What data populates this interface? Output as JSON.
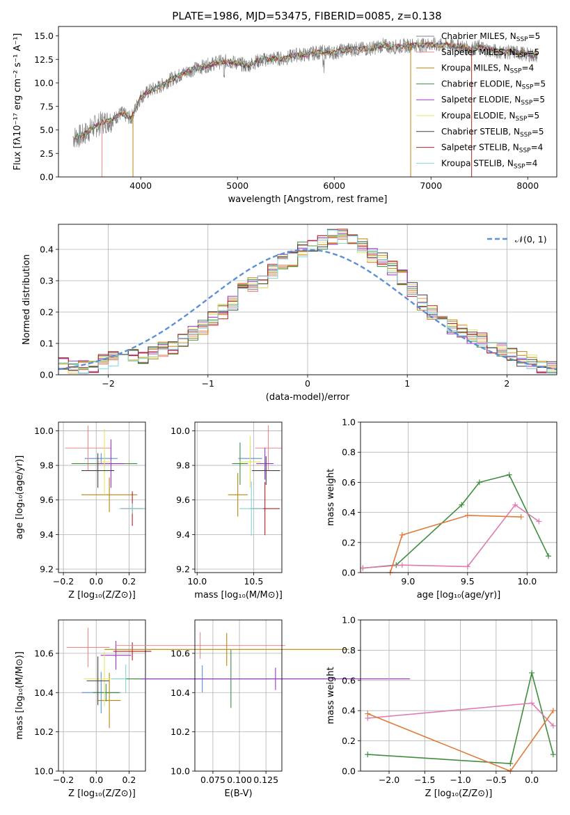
{
  "title": "PLATE=1986, MJD=53475, FIBERID=0085, z=0.138",
  "colors": [
    "#808080",
    "#e8898a",
    "#b8860b",
    "#3e8e3e",
    "#9932cc",
    "#e5e566",
    "#404040",
    "#b22222",
    "#7fd4dc"
  ],
  "spectrum": {
    "xlabel": "wavelength [Angstrom, rest frame]",
    "ylabel": "Flux [fλ10⁻¹⁷ erg cm⁻² s⁻¹ A⁻¹]",
    "xticks": [
      "4000",
      "5000",
      "6000",
      "7000",
      "8000"
    ],
    "yticks": [
      "0.0",
      "2.5",
      "5.0",
      "7.5",
      "10.0",
      "12.5",
      "15.0"
    ],
    "legend": [
      {
        "label": "Chabrier MILES, N",
        "sub": "SSP",
        "suffix": "=5",
        "color": "#808080"
      },
      {
        "label": "Salpeter MILES, N",
        "sub": "SSP",
        "suffix": "=5",
        "color": "#e8898a"
      },
      {
        "label": "Kroupa MILES, N",
        "sub": "SSP",
        "suffix": "=4",
        "color": "#b8860b"
      },
      {
        "label": "Chabrier ELODIE, N",
        "sub": "SSP",
        "suffix": "=5",
        "color": "#3e8e3e"
      },
      {
        "label": "Salpeter ELODIE, N",
        "sub": "SSP",
        "suffix": "=5",
        "color": "#9932cc"
      },
      {
        "label": "Kroupa ELODIE, N",
        "sub": "SSP",
        "suffix": "=5",
        "color": "#e5e566"
      },
      {
        "label": "Chabrier STELIB, N",
        "sub": "SSP",
        "suffix": "=5",
        "color": "#404040"
      },
      {
        "label": "Salpeter STELIB, N",
        "sub": "SSP",
        "suffix": "=4",
        "color": "#b22222"
      },
      {
        "label": "Kroupa STELIB, N",
        "sub": "SSP",
        "suffix": "=4",
        "color": "#7fd4dc"
      }
    ]
  },
  "histogram": {
    "xlabel": "(data-model)/error",
    "ylabel": "Normed distribution",
    "xticks": [
      "−2",
      "−1",
      "0",
      "1",
      "2"
    ],
    "yticks": [
      "0.0",
      "0.1",
      "0.2",
      "0.3",
      "0.4"
    ],
    "legend": "𝒩(0, 1)"
  },
  "panels": {
    "age_z": {
      "xlabel": "Z [log₁₀(Z/Z⊙)]",
      "ylabel": "age  [log₁₀(age/yr)]",
      "xticks": [
        "−0.2",
        "0.0",
        "0.2"
      ],
      "yticks": [
        "9.2",
        "9.4",
        "9.6",
        "9.8",
        "10.0"
      ]
    },
    "age_mass": {
      "xlabel": "mass [log₁₀(M/M⊙)]",
      "xticks": [
        "10.0",
        "10.5"
      ],
      "yticks": [
        "9.2",
        "9.4",
        "9.6",
        "9.8",
        "10.0"
      ]
    },
    "mw_age": {
      "xlabel": "age  [log₁₀(age/yr)]",
      "ylabel": "mass weight",
      "xticks": [
        "9.0",
        "9.5",
        "10.0"
      ],
      "yticks": [
        "0.0",
        "0.2",
        "0.4",
        "0.6",
        "0.8",
        "1.0"
      ]
    },
    "mass_z": {
      "xlabel": "Z [log₁₀(Z/Z⊙)]",
      "ylabel": "mass [log₁₀(M/M⊙)]",
      "xticks": [
        "−0.2",
        "0.0",
        "0.2"
      ],
      "yticks": [
        "10.0",
        "10.2",
        "10.4",
        "10.6"
      ]
    },
    "mass_ebv": {
      "xlabel": "E(B-V)",
      "xticks": [
        "0.075",
        "0.100",
        "0.125"
      ],
      "yticks": [
        "10.0",
        "10.2",
        "10.4",
        "10.6"
      ]
    },
    "mw_z": {
      "xlabel": "Z [log₁₀(Z/Z⊙)]",
      "ylabel": "mass weight",
      "xticks": [
        "−2.0",
        "−1.5",
        "−1.0",
        "−0.5",
        "0.0"
      ],
      "yticks": [
        "0.0",
        "0.2",
        "0.4",
        "0.6",
        "0.8",
        "1.0"
      ]
    }
  },
  "chart_data": [
    {
      "type": "line",
      "title": "PLATE=1986, MJD=53475, FIBERID=0085, z=0.138",
      "xlabel": "wavelength [Angstrom, rest frame]",
      "ylabel": "Flux [fλ10⁻¹⁷ erg cm⁻² s⁻¹ A⁻¹]",
      "xlim": [
        3150,
        8300
      ],
      "ylim": [
        0,
        16
      ],
      "continuum": {
        "x": [
          3300,
          3400,
          3500,
          3600,
          3700,
          3800,
          3900,
          4000,
          4100,
          4200,
          4300,
          4400,
          4500,
          4600,
          4700,
          4800,
          4900,
          5000,
          5100,
          5200,
          5300,
          5400,
          5500,
          5600,
          5700,
          5800,
          5900,
          6000,
          6100,
          6200,
          6300,
          6400,
          6500,
          6600,
          6700,
          6800,
          6900,
          7000,
          7100,
          7200,
          7300,
          7400,
          7500,
          7600,
          7700,
          7800,
          7900,
          8000,
          8100
        ],
        "y": [
          4.2,
          4.4,
          5.2,
          5.8,
          6.0,
          6.8,
          6.2,
          8.5,
          9.2,
          9.6,
          10.3,
          10.8,
          11.3,
          11.6,
          11.9,
          12.2,
          12.3,
          12.1,
          11.8,
          12.3,
          12.5,
          12.6,
          12.6,
          13.0,
          13.0,
          13.2,
          13.3,
          13.2,
          13.5,
          13.6,
          13.6,
          13.7,
          14.0,
          13.8,
          13.9,
          14.0,
          14.0,
          14.1,
          14.0,
          14.0,
          13.9,
          13.6,
          13.8,
          13.5,
          13.3,
          13.3,
          13.2,
          13.0,
          12.9
        ]
      },
      "series": [
        "Chabrier MILES, NSSP=5",
        "Salpeter MILES, NSSP=5",
        "Kroupa MILES, NSSP=4",
        "Chabrier ELODIE, NSSP=5",
        "Salpeter ELODIE, NSSP=5",
        "Kroupa ELODIE, NSSP=5",
        "Chabrier STELIB, NSSP=5",
        "Salpeter STELIB, NSSP=4",
        "Kroupa STELIB, NSSP=4"
      ]
    },
    {
      "type": "bar",
      "xlabel": "(data-model)/error",
      "ylabel": "Normed distribution",
      "xlim": [
        -2.5,
        2.5
      ],
      "ylim": [
        0,
        0.48
      ],
      "bin_width": 0.1,
      "bins_start": -2.5,
      "values": [
        0.03,
        0.02,
        0.02,
        0.03,
        0.04,
        0.05,
        0.05,
        0.06,
        0.06,
        0.07,
        0.08,
        0.09,
        0.11,
        0.13,
        0.15,
        0.18,
        0.2,
        0.23,
        0.27,
        0.29,
        0.3,
        0.33,
        0.36,
        0.37,
        0.4,
        0.41,
        0.42,
        0.44,
        0.44,
        0.43,
        0.41,
        0.38,
        0.37,
        0.34,
        0.31,
        0.27,
        0.23,
        0.2,
        0.18,
        0.15,
        0.14,
        0.12,
        0.11,
        0.09,
        0.08,
        0.06,
        0.05,
        0.04,
        0.03,
        0.02
      ]
    },
    {
      "type": "scatter",
      "xlabel": "Z [log₁₀(Z/Z⊙)]",
      "ylabel": "age  [log₁₀(age/yr)]",
      "xlim": [
        -0.23,
        0.3
      ],
      "ylim": [
        9.18,
        10.05
      ],
      "points": [
        {
          "x": 0.03,
          "y": 9.84,
          "xerr": 0.1,
          "yerr": 0.03
        },
        {
          "x": -0.05,
          "y": 9.9,
          "xerr": 0.14,
          "yerr": 0.13
        },
        {
          "x": 0.08,
          "y": 9.63,
          "xerr": 0.17,
          "yerr": 0.1
        },
        {
          "x": 0.05,
          "y": 9.81,
          "xerr": 0.2,
          "yerr": 0.06
        },
        {
          "x": 0.09,
          "y": 9.81,
          "xerr": 0.08,
          "yerr": 0.14
        },
        {
          "x": 0.05,
          "y": 9.82,
          "xerr": 0.04,
          "yerr": 0.19
        },
        {
          "x": 0.01,
          "y": 9.77,
          "xerr": 0.1,
          "yerr": 0.1
        },
        {
          "x": 0.22,
          "y": 9.55,
          "xerr": 0.07,
          "yerr": 0.1
        },
        {
          "x": 0.22,
          "y": 9.55,
          "xerr": 0.08,
          "yerr": 0.03
        }
      ]
    },
    {
      "type": "scatter",
      "xlabel": "mass [log₁₀(M/M⊙)]",
      "xlim": [
        9.98,
        10.75
      ],
      "ylim": [
        9.18,
        10.05
      ],
      "points": [
        {
          "x": 10.47,
          "y": 9.84
        },
        {
          "x": 10.63,
          "y": 9.9
        },
        {
          "x": 10.36,
          "y": 9.63
        },
        {
          "x": 10.38,
          "y": 9.81
        },
        {
          "x": 10.6,
          "y": 9.81
        },
        {
          "x": 10.47,
          "y": 9.82
        },
        {
          "x": 10.61,
          "y": 9.77
        },
        {
          "x": 10.6,
          "y": 9.55
        },
        {
          "x": 10.48,
          "y": 9.55
        }
      ]
    },
    {
      "type": "line",
      "xlabel": "age  [log₁₀(age/yr)]",
      "ylabel": "mass weight",
      "xlim": [
        8.6,
        10.25
      ],
      "ylim": [
        0,
        1
      ],
      "series": [
        {
          "x": [
            8.62,
            8.9,
            9.45,
            9.6,
            9.85,
            10.18
          ],
          "y": [
            0.03,
            0.05,
            0.45,
            0.6,
            0.65,
            0.11
          ]
        },
        {
          "x": [
            8.62,
            8.95,
            9.5,
            9.9,
            10.1
          ],
          "y": [
            0.03,
            0.05,
            0.04,
            0.45,
            0.34
          ]
        },
        {
          "x": [
            8.85,
            8.95,
            9.5,
            9.95
          ],
          "y": [
            0.0,
            0.25,
            0.38,
            0.37
          ]
        }
      ]
    },
    {
      "type": "scatter",
      "xlabel": "Z [log₁₀(Z/Z⊙)]",
      "ylabel": "mass [log₁₀(M/M⊙)]",
      "xlim": [
        -0.23,
        0.3
      ],
      "ylim": [
        10.0,
        10.77
      ],
      "points": [
        {
          "x": 0.03,
          "y": 10.4
        },
        {
          "x": -0.05,
          "y": 10.63
        },
        {
          "x": 0.08,
          "y": 10.36
        },
        {
          "x": 0.06,
          "y": 10.4
        },
        {
          "x": 0.12,
          "y": 10.59
        },
        {
          "x": 0.05,
          "y": 10.47
        },
        {
          "x": 0.01,
          "y": 10.46
        },
        {
          "x": 0.22,
          "y": 10.61
        },
        {
          "x": 0.18,
          "y": 10.47
        }
      ]
    },
    {
      "type": "scatter",
      "xlabel": "E(B-V)",
      "xlim": [
        0.058,
        0.14
      ],
      "ylim": [
        10.0,
        10.77
      ],
      "points": [
        {
          "x": 0.065,
          "y": 10.47
        },
        {
          "x": 0.063,
          "y": 10.64
        },
        {
          "x": 0.088,
          "y": 10.62
        },
        {
          "x": 0.092,
          "y": 10.47
        },
        {
          "x": 0.134,
          "y": 10.47
        }
      ]
    },
    {
      "type": "line",
      "xlabel": "Z [log₁₀(Z/Z⊙)]",
      "ylabel": "mass weight",
      "xlim": [
        -2.4,
        0.35
      ],
      "ylim": [
        0,
        1
      ],
      "series": [
        {
          "x": [
            -2.3,
            -0.3,
            0.0,
            0.3
          ],
          "y": [
            0.11,
            0.05,
            0.65,
            0.11
          ]
        },
        {
          "x": [
            -2.3,
            0.0,
            0.3
          ],
          "y": [
            0.35,
            0.45,
            0.3
          ]
        },
        {
          "x": [
            -2.3,
            -0.3,
            0.3
          ],
          "y": [
            0.38,
            0.0,
            0.4
          ]
        }
      ]
    }
  ]
}
